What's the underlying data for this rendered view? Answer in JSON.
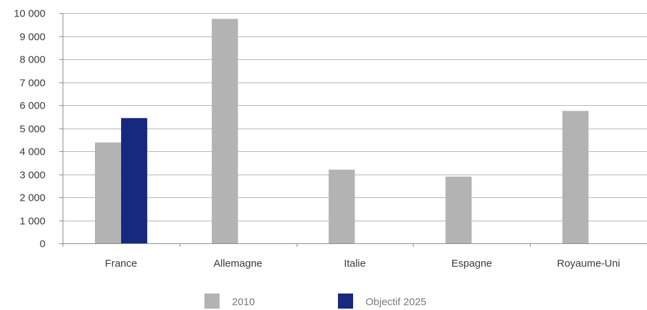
{
  "chart_data": {
    "type": "bar",
    "title": "",
    "xlabel": "",
    "ylabel": "",
    "categories": [
      "France",
      "Allemagne",
      "Italie",
      "Espagne",
      "Royaume-Uni"
    ],
    "series": [
      {
        "name": "2010",
        "color": "#b3b3b3",
        "values": [
          4380,
          9750,
          3200,
          2900,
          5750
        ]
      },
      {
        "name": "Objectif 2025",
        "color": "#17297f",
        "values": [
          5440,
          null,
          null,
          null,
          null
        ]
      }
    ],
    "ylim": [
      0,
      10000
    ],
    "yticks": [
      0,
      1000,
      2000,
      3000,
      4000,
      5000,
      6000,
      7000,
      8000,
      9000,
      10000
    ],
    "ytick_labels": [
      "0",
      "1 000",
      "2 000",
      "3 000",
      "4 000",
      "5 000",
      "6 000",
      "7 000",
      "8 000",
      "9 000",
      "10 000"
    ],
    "grid": true,
    "legend_position": "bottom"
  }
}
